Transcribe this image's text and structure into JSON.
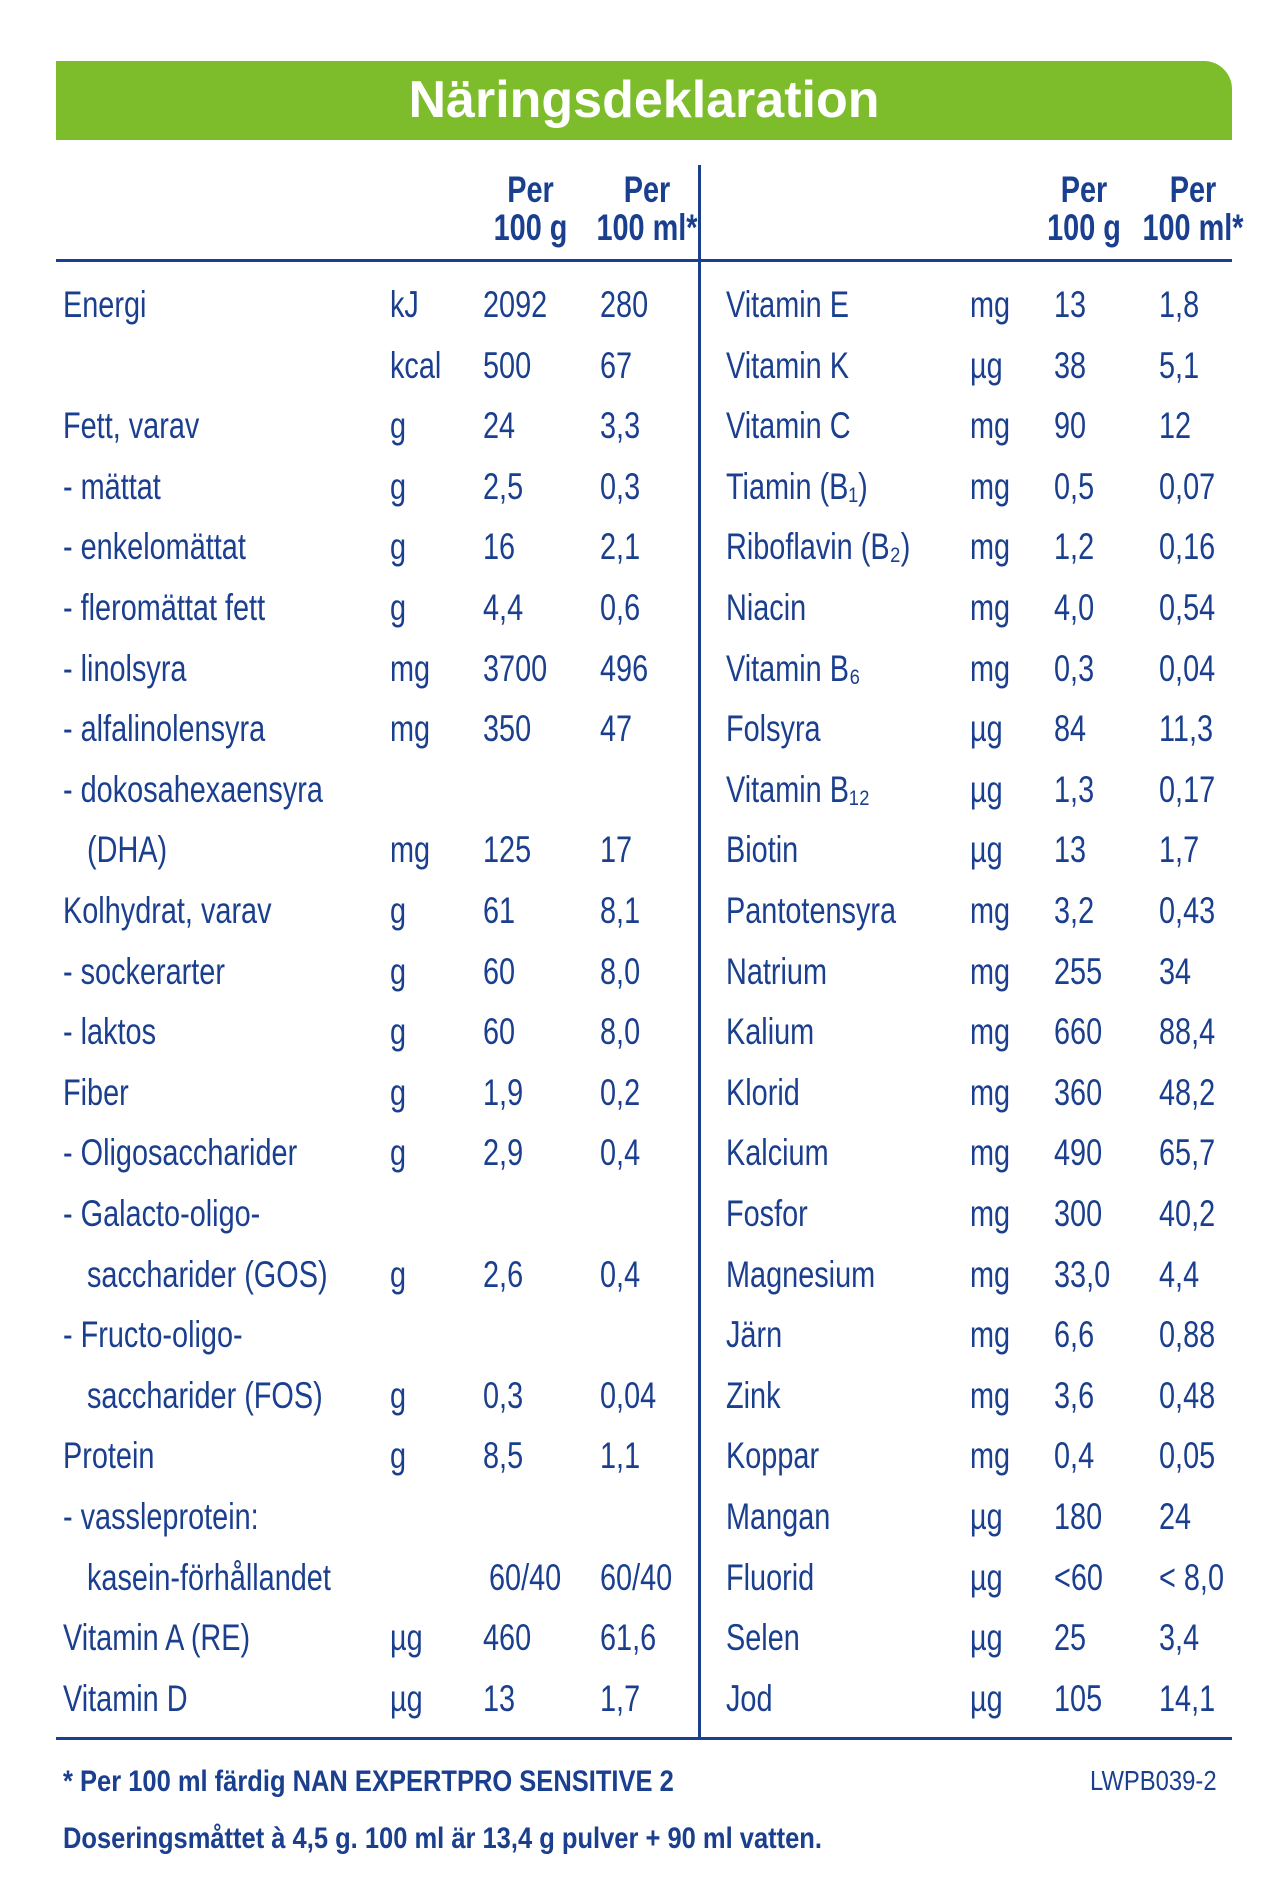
{
  "header": {
    "title": "Näringsdeklaration"
  },
  "column_headers": [
    [
      "Per",
      "100 g"
    ],
    [
      "Per",
      "100 ml*"
    ]
  ],
  "left": [
    [
      "Energi",
      "kJ",
      "2092",
      "280"
    ],
    [
      null,
      "kcal",
      "500",
      "67"
    ],
    [
      "Fett, varav",
      "g",
      "24",
      "3,3"
    ],
    [
      "- mättat",
      "g",
      "2,5",
      "0,3"
    ],
    [
      "- enkelomättat",
      "g",
      "16",
      "2,1"
    ],
    [
      "- fleromättat fett",
      "g",
      "4,4",
      "0,6"
    ],
    [
      "- linolsyra",
      "mg",
      "3700",
      "496"
    ],
    [
      "- alfalinolensyra",
      "mg",
      "350",
      "47"
    ],
    [
      "- dokosahexaensyra",
      null,
      null,
      null
    ],
    [
      "(DHA)",
      "mg",
      "125",
      "17"
    ],
    [
      "Kolhydrat, varav",
      "g",
      "61",
      "8,1"
    ],
    [
      "- sockerarter",
      "g",
      "60",
      "8,0"
    ],
    [
      "- laktos",
      "g",
      "60",
      "8,0"
    ],
    [
      "Fiber",
      "g",
      "1,9",
      "0,2"
    ],
    [
      "- Oligosaccharider",
      "g",
      "2,9",
      "0,4"
    ],
    [
      "- Galacto-oligo-",
      null,
      null,
      null
    ],
    [
      "saccharider (GOS)",
      "g",
      "2,6",
      "0,4"
    ],
    [
      "- Fructo-oligo-",
      null,
      null,
      null
    ],
    [
      "saccharider (FOS)",
      "g",
      "0,3",
      "0,04"
    ],
    [
      "Protein",
      "g",
      "8,5",
      "1,1"
    ],
    [
      "- vassleprotein:",
      null,
      null,
      null
    ],
    [
      "kasein-förhållandet",
      null,
      "60/40",
      "60/40"
    ],
    [
      "Vitamin A (RE)",
      "µg",
      "460",
      "61,6"
    ],
    [
      "Vitamin D",
      "µg",
      "13",
      "1,7"
    ]
  ],
  "right": [
    [
      "Vitamin E",
      "mg",
      "13",
      "1,8"
    ],
    [
      "Vitamin K",
      "µg",
      "38",
      "5,1"
    ],
    [
      "Vitamin C",
      "mg",
      "90",
      "12"
    ],
    [
      "Tiamin (B₁)",
      "mg",
      "0,5",
      "0,07"
    ],
    [
      "Riboflavin (B₂)",
      "mg",
      "1,2",
      "0,16"
    ],
    [
      "Niacin",
      "mg",
      "4,0",
      "0,54"
    ],
    [
      "Vitamin B₆",
      "mg",
      "0,3",
      "0,04"
    ],
    [
      "Folsyra",
      "µg",
      "84",
      "11,3"
    ],
    [
      "Vitamin B₁₂",
      "µg",
      "1,3",
      "0,17"
    ],
    [
      "Biotin",
      "µg",
      "13",
      "1,7"
    ],
    [
      "Pantotensyra",
      "mg",
      "3,2",
      "0,43"
    ],
    [
      "Natrium",
      "mg",
      "255",
      "34"
    ],
    [
      "Kalium",
      "mg",
      "660",
      "88,4"
    ],
    [
      "Klorid",
      "mg",
      "360",
      "48,2"
    ],
    [
      "Kalcium",
      "mg",
      "490",
      "65,7"
    ],
    [
      "Fosfor",
      "mg",
      "300",
      "40,2"
    ],
    [
      "Magnesium",
      "mg",
      "33,0",
      "4,4"
    ],
    [
      "Järn",
      "mg",
      "6,6",
      "0,88"
    ],
    [
      "Zink",
      "mg",
      "3,6",
      "0,48"
    ],
    [
      "Koppar",
      "mg",
      "0,4",
      "0,05"
    ],
    [
      "Mangan",
      "µg",
      "180",
      "24"
    ],
    [
      "Fluorid",
      "µg",
      "<60",
      "< 8,0"
    ],
    [
      "Selen",
      "µg",
      "25",
      "3,4"
    ],
    [
      "Jod",
      "µg",
      "105",
      "14,1"
    ]
  ],
  "footer": {
    "note": "* Per 100 ml färdig NAN EXPERTPRO SENSITIVE 2",
    "code": "LWPB039-2",
    "dosage": "Doseringsmåttet à 4,5 g. 100 ml är 13,4 g pulver + 90 ml vatten."
  }
}
